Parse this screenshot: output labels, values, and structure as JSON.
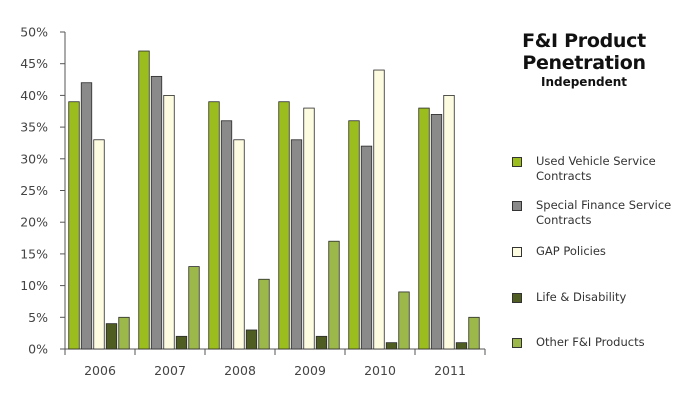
{
  "title_line1": "F&I Product",
  "title_line2": "Penetration",
  "subtitle": "Independent",
  "colors": {
    "used_vehicle": "#9bbe1e",
    "special_finance": "#8a8a8a",
    "gap": "#fdfbe0",
    "life": "#4f5d23",
    "other": "#9cb84a",
    "stroke": "#2a2a2a",
    "axis": "#555555"
  },
  "chart_data": {
    "type": "bar",
    "categories": [
      "2006",
      "2007",
      "2008",
      "2009",
      "2010",
      "2011"
    ],
    "series": [
      {
        "name": "Used Vehicle Service Contracts",
        "values": [
          39,
          47,
          39,
          39,
          36,
          38
        ]
      },
      {
        "name": "Special Finance Service Contracts",
        "values": [
          42,
          43,
          36,
          33,
          32,
          37
        ]
      },
      {
        "name": "GAP Policies",
        "values": [
          33,
          40,
          33,
          38,
          44,
          40
        ]
      },
      {
        "name": "Life & Disability",
        "values": [
          4,
          2,
          3,
          2,
          1,
          1
        ]
      },
      {
        "name": "Other F&I Products",
        "values": [
          5,
          13,
          11,
          17,
          9,
          5
        ]
      }
    ],
    "y_ticks": [
      "0%",
      "5%",
      "10%",
      "15%",
      "20%",
      "25%",
      "30%",
      "35%",
      "40%",
      "45%",
      "50%"
    ],
    "ylim": [
      0,
      50
    ],
    "grid": false,
    "legend_position": "right"
  }
}
